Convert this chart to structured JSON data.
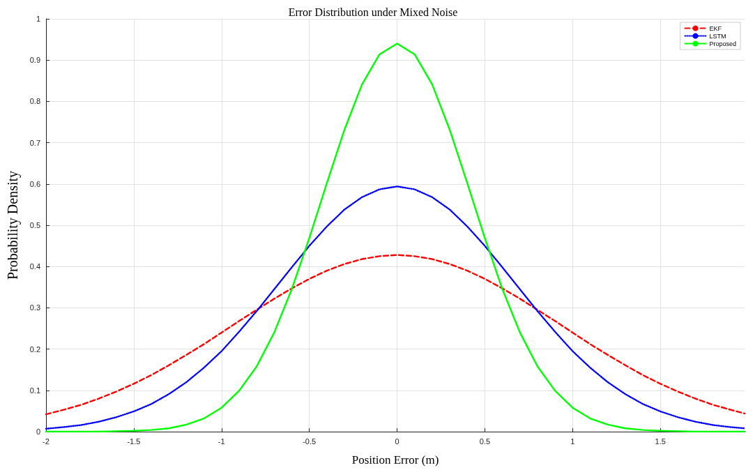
{
  "chart_data": {
    "type": "line",
    "title": "Error Distribution under Mixed Noise",
    "xlabel": "Position Error (m)",
    "ylabel": "Probability Density",
    "x": [
      -2,
      -1.9,
      -1.8,
      -1.7,
      -1.6,
      -1.5,
      -1.4,
      -1.3,
      -1.2,
      -1.1,
      -1,
      -0.9,
      -0.8,
      -0.7,
      -0.6,
      -0.5,
      -0.4,
      -0.3,
      -0.2,
      -0.1,
      0,
      0.1,
      0.2,
      0.3,
      0.4,
      0.5,
      0.6,
      0.7,
      0.8,
      0.9,
      1,
      1.1,
      1.2,
      1.3,
      1.4,
      1.5,
      1.6,
      1.7,
      1.8,
      1.9,
      1.98
    ],
    "series": [
      {
        "name": "EKF",
        "color": "#ff0000",
        "line_style": "dashed",
        "values": [
          0.042,
          0.053,
          0.065,
          0.08,
          0.097,
          0.116,
          0.137,
          0.161,
          0.186,
          0.212,
          0.24,
          0.268,
          0.295,
          0.322,
          0.347,
          0.37,
          0.39,
          0.406,
          0.418,
          0.425,
          0.428,
          0.425,
          0.418,
          0.406,
          0.39,
          0.37,
          0.347,
          0.322,
          0.295,
          0.268,
          0.24,
          0.212,
          0.186,
          0.161,
          0.137,
          0.116,
          0.097,
          0.08,
          0.065,
          0.053,
          0.044
        ]
      },
      {
        "name": "LSTM",
        "color": "#0000ff",
        "line_style": "dotted",
        "values": [
          0.007,
          0.011,
          0.016,
          0.024,
          0.035,
          0.049,
          0.067,
          0.091,
          0.12,
          0.155,
          0.195,
          0.242,
          0.292,
          0.345,
          0.398,
          0.45,
          0.497,
          0.538,
          0.568,
          0.587,
          0.594,
          0.587,
          0.568,
          0.538,
          0.497,
          0.45,
          0.398,
          0.345,
          0.292,
          0.242,
          0.195,
          0.155,
          0.12,
          0.091,
          0.067,
          0.049,
          0.035,
          0.024,
          0.016,
          0.011,
          0.008
        ]
      },
      {
        "name": "Proposed",
        "color": "#00ff00",
        "line_style": "solid",
        "values": [
          0,
          0,
          0,
          0,
          0.001,
          0.002,
          0.004,
          0.008,
          0.017,
          0.032,
          0.058,
          0.099,
          0.158,
          0.24,
          0.345,
          0.469,
          0.602,
          0.731,
          0.841,
          0.914,
          0.94,
          0.914,
          0.841,
          0.731,
          0.602,
          0.469,
          0.345,
          0.24,
          0.158,
          0.099,
          0.058,
          0.032,
          0.017,
          0.008,
          0.004,
          0.002,
          0.001,
          0,
          0,
          0,
          0
        ]
      }
    ],
    "xlim": [
      -2,
      1.98
    ],
    "xticks": [
      -2,
      -1.5,
      -1,
      -0.5,
      0,
      0.5,
      1,
      1.5
    ],
    "ylim": [
      0,
      1
    ],
    "yticks": [
      0,
      0.1,
      0.2,
      0.3,
      0.4,
      0.5,
      0.6,
      0.7,
      0.8,
      0.9,
      1
    ],
    "grid": true,
    "legend": "top right"
  }
}
